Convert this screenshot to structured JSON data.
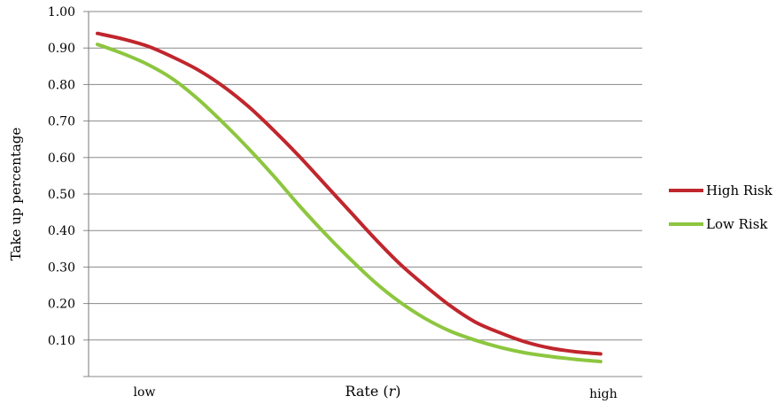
{
  "chart_data": {
    "type": "line",
    "title": "",
    "xlabel": "Rate (r)",
    "xlabel_parts": {
      "prefix": "Rate (",
      "var": "r",
      "suffix": ")"
    },
    "ylabel": "Take up percentage",
    "x_tick_labels": [
      "low",
      "high"
    ],
    "y_tick_labels": [
      "1.00",
      "0.90",
      "0.80",
      "0.70",
      "0.60",
      "0.50",
      "0.40",
      "0.30",
      "0.20",
      "0.10"
    ],
    "ylim": [
      0,
      1.0
    ],
    "xlim": [
      0,
      1
    ],
    "grid": true,
    "legend_position": "right",
    "x": [
      0.0,
      0.05,
      0.1,
      0.15,
      0.2,
      0.25,
      0.3,
      0.35,
      0.4,
      0.45,
      0.5,
      0.55,
      0.6,
      0.65,
      0.7,
      0.75,
      0.8,
      0.85,
      0.9,
      0.95,
      1.0
    ],
    "series": [
      {
        "name": "High Risk",
        "color": "#C0262D",
        "values": [
          0.94,
          0.925,
          0.905,
          0.875,
          0.84,
          0.795,
          0.74,
          0.675,
          0.605,
          0.53,
          0.455,
          0.38,
          0.31,
          0.25,
          0.195,
          0.15,
          0.12,
          0.095,
          0.078,
          0.068,
          0.062
        ]
      },
      {
        "name": "Low Risk",
        "color": "#8DC63F",
        "values": [
          0.91,
          0.885,
          0.855,
          0.815,
          0.76,
          0.695,
          0.625,
          0.55,
          0.47,
          0.395,
          0.325,
          0.26,
          0.205,
          0.16,
          0.125,
          0.1,
          0.08,
          0.065,
          0.055,
          0.047,
          0.041
        ]
      }
    ]
  }
}
